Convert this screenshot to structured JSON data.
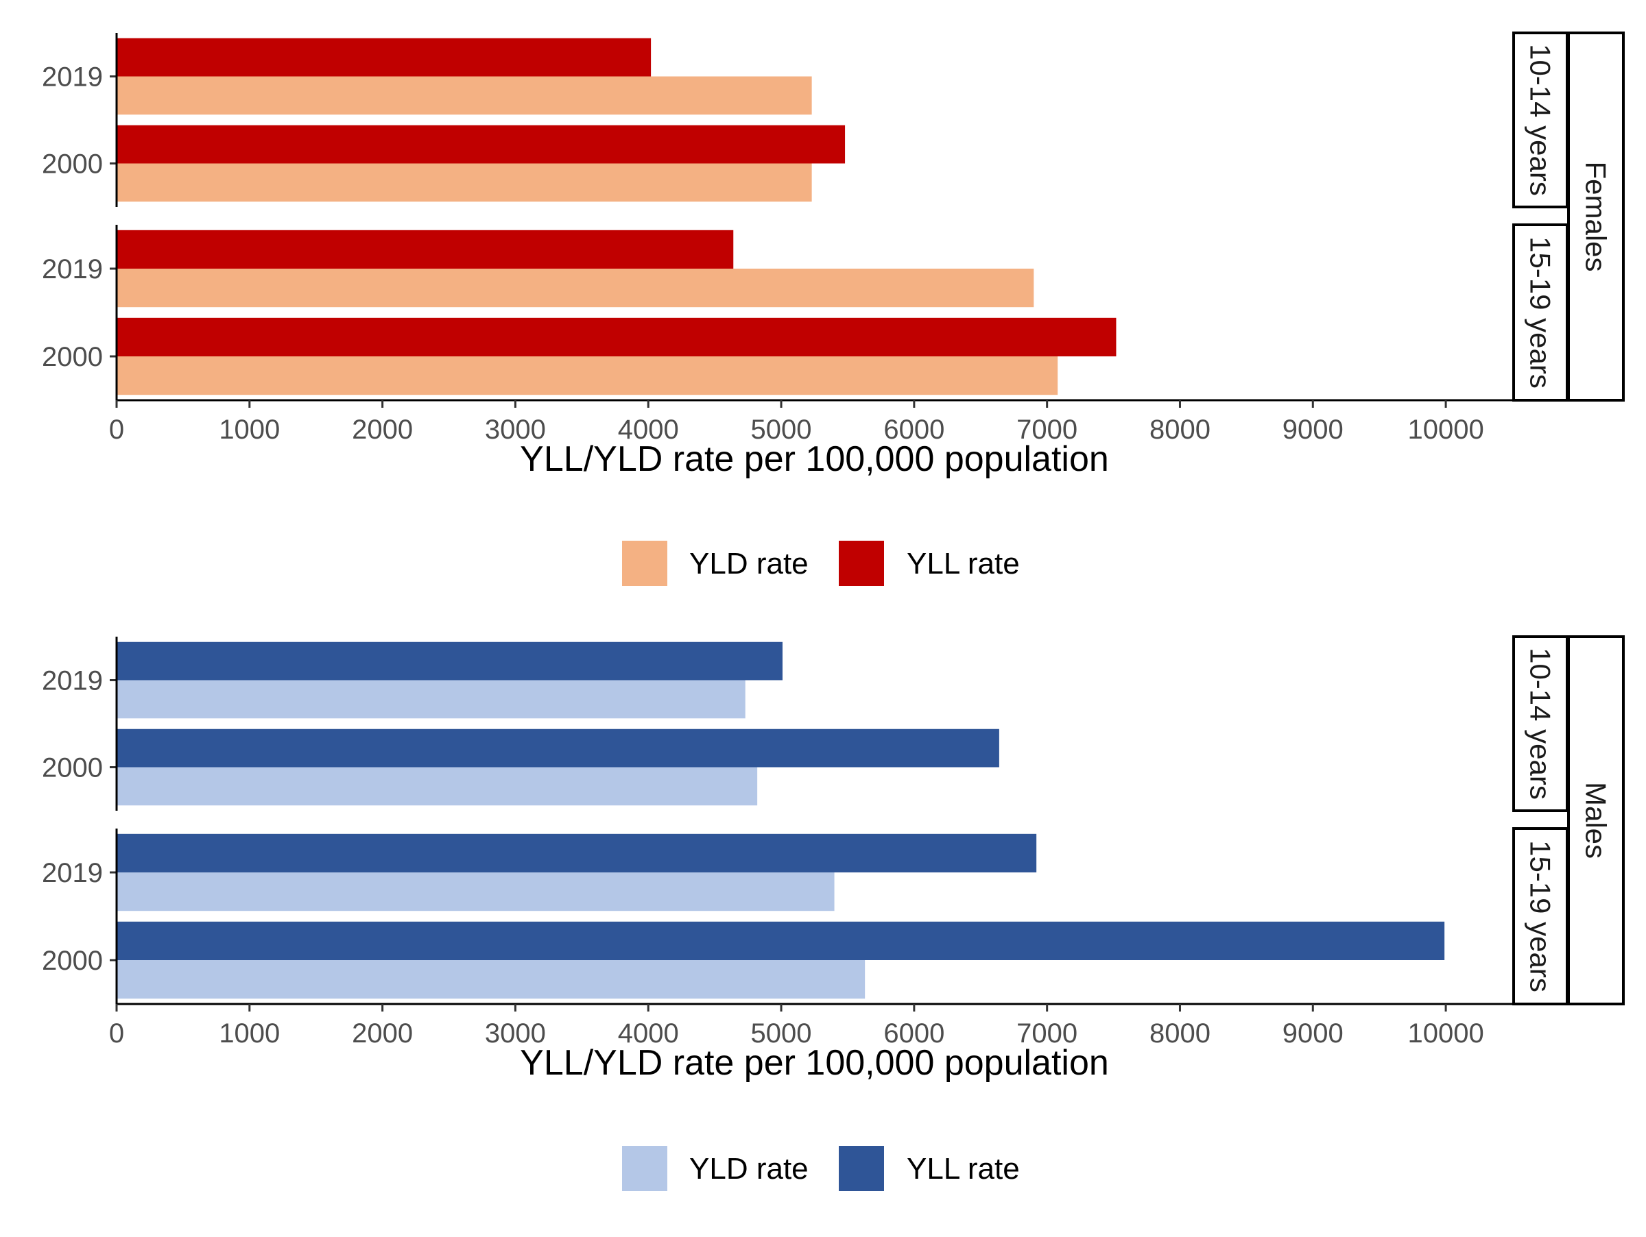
{
  "chart_data": [
    {
      "type": "bar",
      "orientation": "horizontal",
      "sex": "Females",
      "xlabel": "YLL/YLD rate per 100,000 population",
      "xlim": [
        0,
        10500
      ],
      "xticks": [
        0,
        1000,
        2000,
        3000,
        4000,
        5000,
        6000,
        7000,
        8000,
        9000,
        10000
      ],
      "legend_position": "bottom",
      "colors": {
        "YLD rate": "#F4B183",
        "YLL rate": "#C00000"
      },
      "legend": [
        "YLD rate",
        "YLL rate"
      ],
      "panels": [
        {
          "label": "10-14 years",
          "rows": [
            {
              "year": "2019",
              "YLL rate": 4020,
              "YLD rate": 5230
            },
            {
              "year": "2000",
              "YLL rate": 5480,
              "YLD rate": 5230
            }
          ]
        },
        {
          "label": "15-19 years",
          "rows": [
            {
              "year": "2019",
              "YLL rate": 4640,
              "YLD rate": 6900
            },
            {
              "year": "2000",
              "YLL rate": 7520,
              "YLD rate": 7080
            }
          ]
        }
      ]
    },
    {
      "type": "bar",
      "orientation": "horizontal",
      "sex": "Males",
      "xlabel": "YLL/YLD rate per 100,000 population",
      "xlim": [
        0,
        10500
      ],
      "xticks": [
        0,
        1000,
        2000,
        3000,
        4000,
        5000,
        6000,
        7000,
        8000,
        9000,
        10000
      ],
      "legend_position": "bottom",
      "colors": {
        "YLD rate": "#B4C7E7",
        "YLL rate": "#2F5597"
      },
      "legend": [
        "YLD rate",
        "YLL rate"
      ],
      "panels": [
        {
          "label": "10-14 years",
          "rows": [
            {
              "year": "2019",
              "YLL rate": 5010,
              "YLD rate": 4730
            },
            {
              "year": "2000",
              "YLL rate": 6640,
              "YLD rate": 4820
            }
          ]
        },
        {
          "label": "15-19 years",
          "rows": [
            {
              "year": "2019",
              "YLL rate": 6920,
              "YLD rate": 5400
            },
            {
              "year": "2000",
              "YLL rate": 9990,
              "YLD rate": 5630
            }
          ]
        }
      ]
    }
  ]
}
